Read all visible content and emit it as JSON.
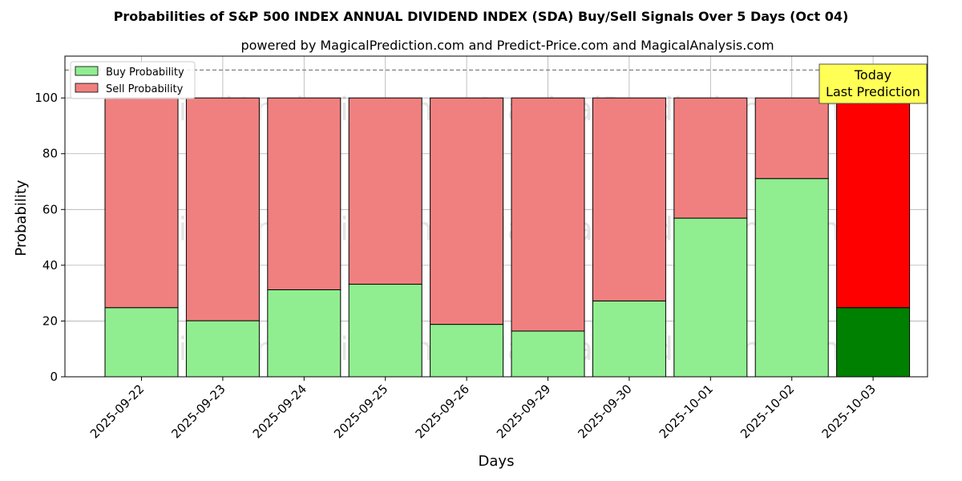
{
  "colors": {
    "buy": "#90ee90",
    "sell": "#f08080",
    "buy_today": "#008000",
    "sell_today": "#ff0000",
    "annotation_bg": "#ffff55",
    "grid": "#b0b0b0"
  },
  "watermarks": [
    "MagicalAnalysis.com",
    "MagicalPrediction.com"
  ],
  "annotation": {
    "line1": "Today",
    "line2": "Last Prediction"
  },
  "chart_data": {
    "type": "bar",
    "stacked": true,
    "title": "Probabilities of S&P 500 INDEX ANNUAL DIVIDEND INDEX (SDA) Buy/Sell Signals Over 5 Days (Oct 04)",
    "subtitle": "powered by MagicalPrediction.com and Predict-Price.com and MagicalAnalysis.com",
    "xlabel": "Days",
    "ylabel": "Probability",
    "categories": [
      "2025-09-22",
      "2025-09-23",
      "2025-09-24",
      "2025-09-25",
      "2025-09-26",
      "2025-09-29",
      "2025-09-30",
      "2025-10-01",
      "2025-10-02",
      "2025-10-03"
    ],
    "series": [
      {
        "name": "Buy Probability",
        "values": [
          24.8,
          20.1,
          31.2,
          33.2,
          18.8,
          16.4,
          27.2,
          56.9,
          71.1,
          24.8
        ]
      },
      {
        "name": "Sell Probability",
        "values": [
          75.2,
          79.9,
          68.8,
          66.8,
          81.2,
          83.6,
          72.8,
          43.1,
          28.9,
          75.2
        ]
      }
    ],
    "ylim": [
      0,
      115
    ],
    "yticks": [
      0,
      20,
      40,
      60,
      80,
      100
    ],
    "reference_line": 110,
    "grid": true,
    "legend_position": "top-left"
  }
}
